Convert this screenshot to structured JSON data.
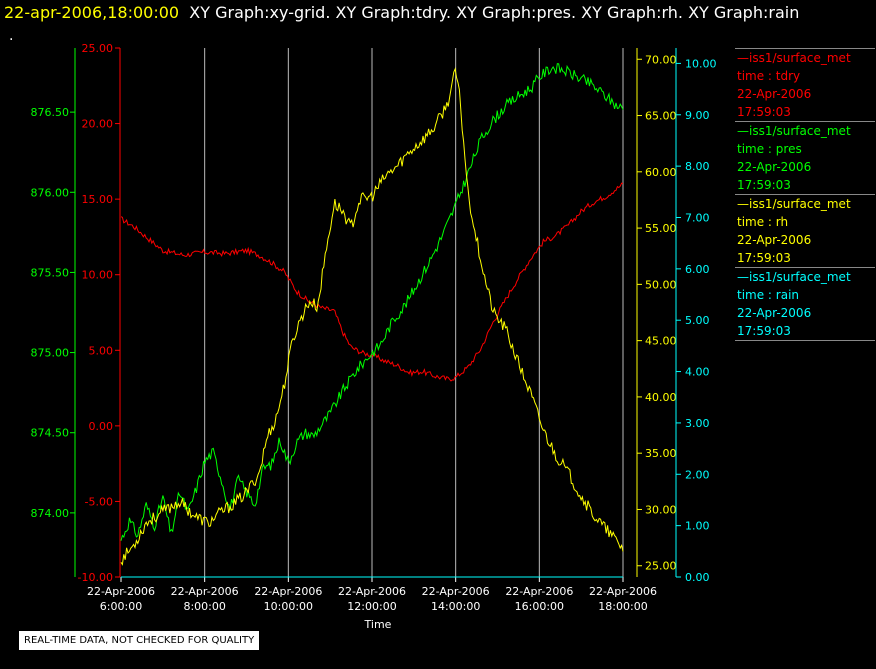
{
  "header": {
    "timestamp": "22-apr-2006,18:00:00",
    "graphs": "XY Graph:xy-grid.  XY Graph:tdry.  XY Graph:pres.  XY Graph:rh.  XY Graph:rain",
    "dot": "."
  },
  "notice": "REAL-TIME DATA, NOT CHECKED FOR QUALITY",
  "colors": {
    "tdry": "#ff0000",
    "pres": "#00ff00",
    "rh": "#ffff00",
    "rain": "#00ffff",
    "grid": "#bbbbbb",
    "background": "#000000"
  },
  "legend": [
    {
      "title": "—iss1/surface_met",
      "var": "time : tdry",
      "date": "22-Apr-2006",
      "time": "17:59:03",
      "color": "#ff0000"
    },
    {
      "title": "—iss1/surface_met",
      "var": "time : pres",
      "date": "22-Apr-2006",
      "time": "17:59:03",
      "color": "#00ff00"
    },
    {
      "title": "—iss1/surface_met",
      "var": "time : rh",
      "date": "22-Apr-2006",
      "time": "17:59:03",
      "color": "#ffff00"
    },
    {
      "title": "—iss1/surface_met",
      "var": "time : rain",
      "date": "22-Apr-2006",
      "time": "17:59:03",
      "color": "#00ffff"
    }
  ],
  "chart_data": {
    "type": "line",
    "xlabel": "Time",
    "xlim": [
      6,
      18
    ],
    "x_ticks": [
      {
        "date": "22-Apr-2006",
        "time": "6:00:00"
      },
      {
        "date": "22-Apr-2006",
        "time": "8:00:00"
      },
      {
        "date": "22-Apr-2006",
        "time": "10:00:00"
      },
      {
        "date": "22-Apr-2006",
        "time": "12:00:00"
      },
      {
        "date": "22-Apr-2006",
        "time": "14:00:00"
      },
      {
        "date": "22-Apr-2006",
        "time": "16:00:00"
      },
      {
        "date": "22-Apr-2006",
        "time": "18:00:00"
      }
    ],
    "grid": true,
    "axes": {
      "pres": {
        "ylim": [
          873.6,
          876.9
        ],
        "ticks": [
          "874.00",
          "874.50",
          "875.00",
          "875.50",
          "876.00",
          "876.50"
        ],
        "color": "#00ff00"
      },
      "tdry": {
        "ylim": [
          -10,
          25
        ],
        "ticks": [
          "-10.00",
          "-5.00",
          "0.00",
          "5.00",
          "10.00",
          "15.00",
          "20.00",
          "25.00"
        ],
        "color": "#ff0000"
      },
      "rh": {
        "ylim": [
          24,
          71
        ],
        "ticks": [
          "25.00",
          "30.00",
          "35.00",
          "40.00",
          "45.00",
          "50.00",
          "55.00",
          "60.00",
          "65.00",
          "70.00"
        ],
        "color": "#ffff00"
      },
      "rain": {
        "ylim": [
          0,
          10.3
        ],
        "ticks": [
          "0.00",
          "1.00",
          "2.00",
          "3.00",
          "4.00",
          "5.00",
          "6.00",
          "7.00",
          "8.00",
          "9.00",
          "10.00"
        ],
        "color": "#00ffff"
      }
    },
    "series": [
      {
        "name": "tdry",
        "axis": "tdry",
        "x": [
          6.0,
          6.3,
          6.6,
          7.0,
          7.5,
          8.0,
          8.5,
          9.0,
          9.3,
          9.6,
          9.9,
          10.2,
          10.5,
          10.8,
          11.1,
          11.3,
          11.5,
          11.8,
          12.0,
          12.3,
          12.6,
          12.9,
          13.2,
          13.5,
          13.8,
          14.0,
          14.3,
          14.6,
          14.9,
          15.2,
          15.5,
          15.8,
          16.1,
          16.4,
          16.7,
          17.0,
          17.3,
          17.6,
          17.9,
          18.0
        ],
        "y": [
          13.7,
          13.2,
          12.5,
          11.6,
          11.3,
          11.5,
          11.4,
          11.6,
          11.3,
          10.8,
          10.2,
          8.9,
          8.2,
          7.8,
          7.6,
          6.2,
          5.2,
          4.8,
          4.7,
          4.3,
          4.0,
          3.5,
          3.6,
          3.3,
          3.1,
          3.2,
          3.9,
          5.1,
          6.9,
          8.4,
          9.8,
          11.1,
          12.2,
          12.6,
          13.3,
          14.2,
          14.8,
          15.2,
          15.8,
          16.0
        ]
      },
      {
        "name": "pres",
        "axis": "pres",
        "x": [
          6.0,
          6.2,
          6.4,
          6.6,
          6.8,
          7.0,
          7.2,
          7.4,
          7.6,
          7.8,
          8.0,
          8.2,
          8.4,
          8.6,
          8.8,
          9.0,
          9.2,
          9.4,
          9.6,
          9.8,
          10.0,
          10.2,
          10.4,
          10.6,
          10.8,
          11.0,
          11.3,
          11.6,
          11.9,
          12.2,
          12.5,
          12.8,
          13.1,
          13.4,
          13.7,
          14.0,
          14.3,
          14.6,
          14.9,
          15.2,
          15.5,
          15.8,
          16.0,
          16.3,
          16.6,
          16.9,
          17.2,
          17.5,
          17.8,
          18.0
        ],
        "y": [
          873.83,
          873.95,
          873.86,
          874.05,
          873.92,
          874.1,
          873.86,
          874.13,
          874.0,
          874.15,
          874.32,
          874.38,
          874.21,
          874.02,
          874.21,
          874.13,
          874.05,
          874.28,
          874.3,
          874.46,
          874.31,
          874.44,
          874.5,
          874.48,
          874.55,
          874.62,
          874.76,
          874.88,
          874.97,
          875.05,
          875.2,
          875.3,
          875.44,
          875.58,
          875.74,
          875.92,
          876.12,
          876.33,
          876.45,
          876.54,
          876.6,
          876.65,
          876.72,
          876.78,
          876.76,
          876.72,
          876.68,
          876.62,
          876.55,
          876.52
        ]
      },
      {
        "name": "rh",
        "axis": "rh",
        "x": [
          6.0,
          6.3,
          6.6,
          7.0,
          7.4,
          7.8,
          8.1,
          8.4,
          8.7,
          9.0,
          9.3,
          9.5,
          9.7,
          9.9,
          10.1,
          10.3,
          10.5,
          10.7,
          10.9,
          11.1,
          11.3,
          11.5,
          11.7,
          12.0,
          12.3,
          12.6,
          12.9,
          13.2,
          13.5,
          13.8,
          14.0,
          14.1,
          14.3,
          14.5,
          14.7,
          14.9,
          15.2,
          15.5,
          15.8,
          16.1,
          16.4,
          16.7,
          17.0,
          17.3,
          17.6,
          17.9,
          18.0
        ],
        "y": [
          25.5,
          26.8,
          28.8,
          29.8,
          30.7,
          29.3,
          28.8,
          29.8,
          30.5,
          31.5,
          33.2,
          36.5,
          38.0,
          41.0,
          45.0,
          47.0,
          48.5,
          48.0,
          53.0,
          57.2,
          56.5,
          55.0,
          57.5,
          57.8,
          59.5,
          60.5,
          61.8,
          62.8,
          64.0,
          66.0,
          69.0,
          66.5,
          58.0,
          54.0,
          50.5,
          47.5,
          46.0,
          43.0,
          40.2,
          37.0,
          34.8,
          33.2,
          31.2,
          29.5,
          28.2,
          27.0,
          26.5
        ]
      },
      {
        "name": "rain",
        "axis": "rain",
        "x": [
          6.0,
          18.0
        ],
        "y": [
          0.0,
          0.0
        ]
      }
    ]
  }
}
